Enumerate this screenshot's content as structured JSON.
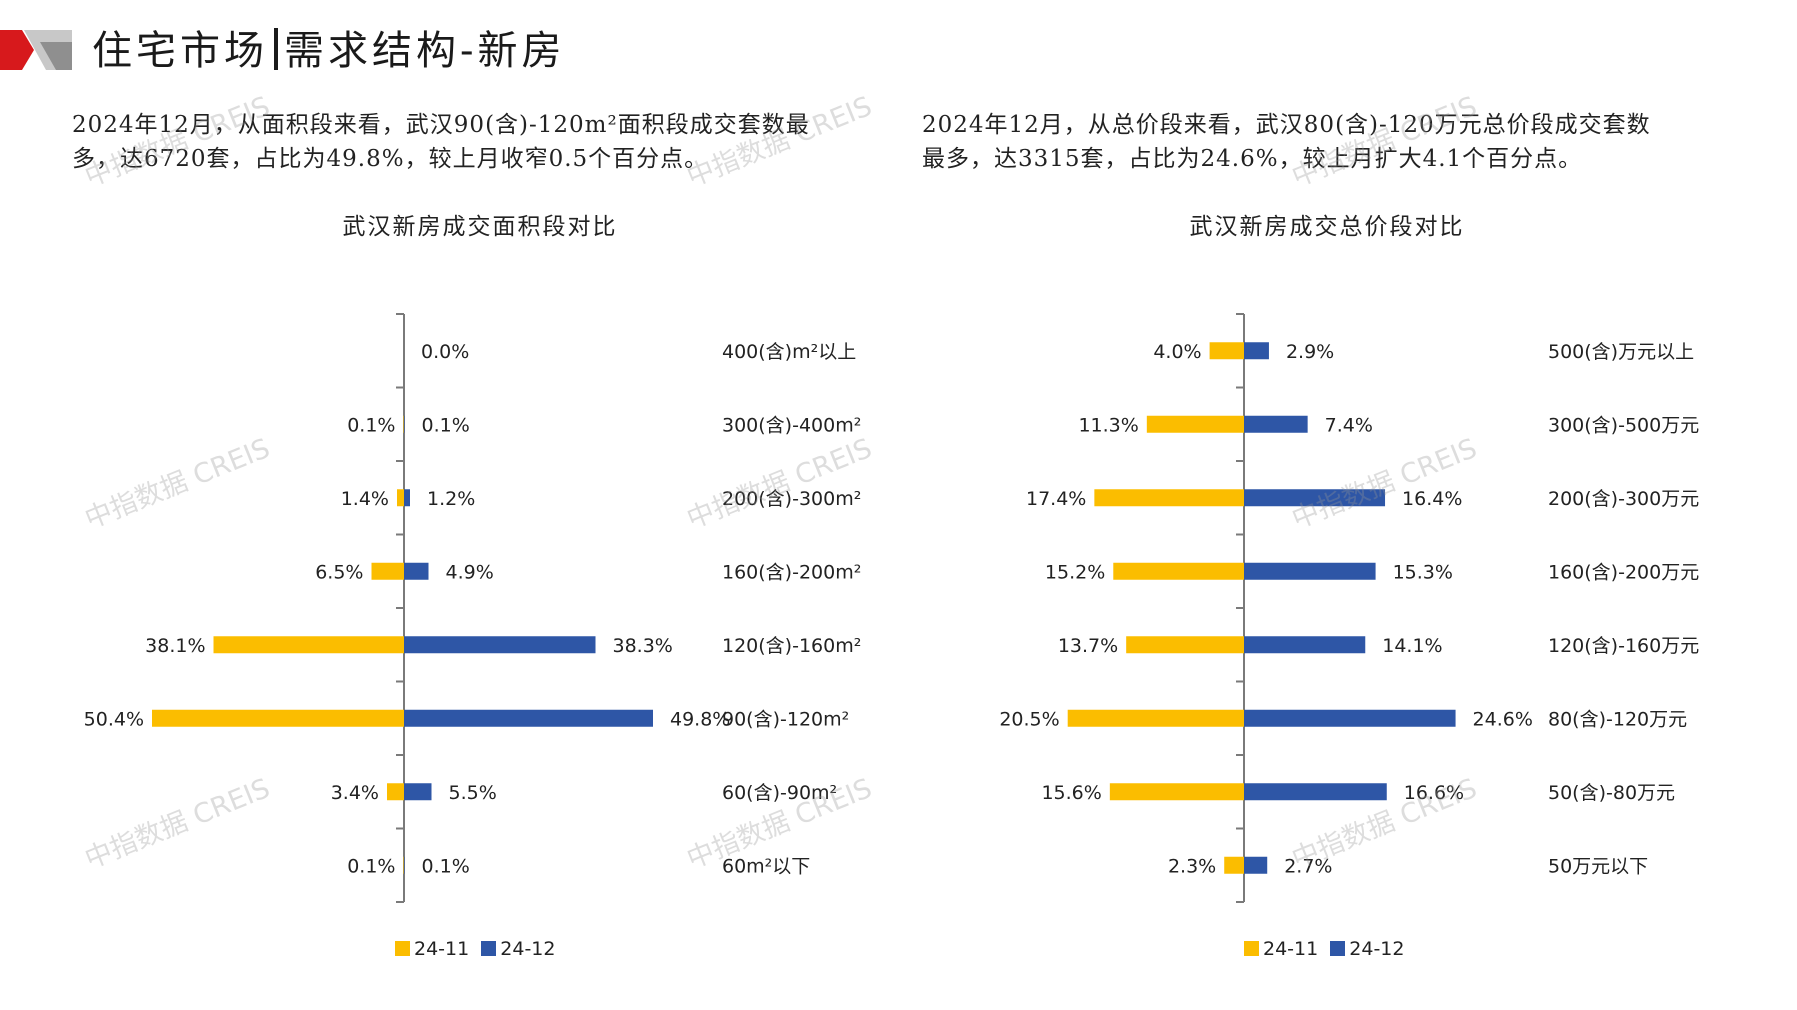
{
  "header": {
    "title_left": "住宅市场",
    "title_right": "需求结构-新房"
  },
  "colors": {
    "prev": "#fbbd00",
    "curr": "#2e56a6",
    "axis": "#7a7a7a",
    "brand_red": "#d7191c",
    "brand_gray": "#9b9b9b"
  },
  "watermark": "中指数据 CREIS",
  "left": {
    "desc_line1": "2024年12月，从面积段来看，武汉90(含)-120m²面积段成交套数最",
    "desc_line2": "多，达6720套，占比为49.8%，较上月收窄0.5个百分点。"
  },
  "right": {
    "desc_line1": "2024年12月，从总价段来看，武汉80(含)-120万元总价段成交套数",
    "desc_line2": "最多，达3315套，占比为24.6%，较上月扩大4.1个百分点。"
  },
  "chart_data": [
    {
      "type": "bar",
      "orientation": "butterfly",
      "title": "武汉新房成交面积段对比",
      "categories": [
        "400(含)m²以上",
        "300(含)-400m²",
        "200(含)-300m²",
        "160(含)-200m²",
        "120(含)-160m²",
        "90(含)-120m²",
        "60(含)-90m²",
        "60m²以下"
      ],
      "series": [
        {
          "name": "24-11",
          "values": [
            0.0,
            0.1,
            1.4,
            6.5,
            38.1,
            50.4,
            3.4,
            0.1
          ],
          "labels": [
            "",
            "0.1%",
            "1.4%",
            "6.5%",
            "38.1%",
            "50.4%",
            "3.4%",
            "0.1%"
          ]
        },
        {
          "name": "24-12",
          "values": [
            0.0,
            0.1,
            1.2,
            4.9,
            38.3,
            49.8,
            5.5,
            0.1
          ],
          "labels": [
            "0.0%",
            "0.1%",
            "1.2%",
            "4.9%",
            "38.3%",
            "49.8%",
            "5.5%",
            "0.1%"
          ]
        }
      ],
      "unit": "%",
      "legend": "bottom"
    },
    {
      "type": "bar",
      "orientation": "butterfly",
      "title": "武汉新房成交总价段对比",
      "categories": [
        "500(含)万元以上",
        "300(含)-500万元",
        "200(含)-300万元",
        "160(含)-200万元",
        "120(含)-160万元",
        "80(含)-120万元",
        "50(含)-80万元",
        "50万元以下"
      ],
      "series": [
        {
          "name": "24-11",
          "values": [
            4.0,
            11.3,
            17.4,
            15.2,
            13.7,
            20.5,
            15.6,
            2.3
          ],
          "labels": [
            "4.0%",
            "11.3%",
            "17.4%",
            "15.2%",
            "13.7%",
            "20.5%",
            "15.6%",
            "2.3%"
          ]
        },
        {
          "name": "24-12",
          "values": [
            2.9,
            7.4,
            16.4,
            15.3,
            14.1,
            24.6,
            16.6,
            2.7
          ],
          "labels": [
            "2.9%",
            "7.4%",
            "16.4%",
            "15.3%",
            "14.1%",
            "24.6%",
            "16.6%",
            "2.7%"
          ]
        }
      ],
      "unit": "%",
      "legend": "bottom"
    }
  ]
}
